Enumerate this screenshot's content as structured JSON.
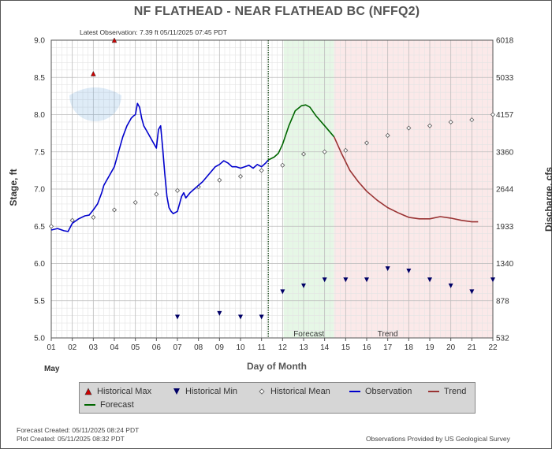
{
  "header": {
    "title": "NF FLATHEAD - NEAR FLATHEAD BC  (NFFQ2)",
    "latest_observation": "Latest Observation: 7.39 ft 05/11/2025 07:45 PDT"
  },
  "chart_data": {
    "type": "line",
    "xlabel": "Day of Month",
    "month_label": "May",
    "ylabel_left": "Stage, ft",
    "ylabel_right": "Discharge, cfs",
    "xlim": [
      1,
      22
    ],
    "ylim": [
      5.0,
      9.0
    ],
    "x_ticks": [
      "01",
      "02",
      "03",
      "04",
      "05",
      "06",
      "07",
      "08",
      "09",
      "10",
      "11",
      "12",
      "13",
      "14",
      "15",
      "16",
      "17",
      "18",
      "19",
      "20",
      "21",
      "22"
    ],
    "y_ticks_left": [
      "5.0",
      "5.5",
      "6.0",
      "6.5",
      "7.0",
      "7.5",
      "8.0",
      "8.5",
      "9.0"
    ],
    "y_ticks_right": [
      "532",
      "878",
      "1340",
      "1933",
      "2644",
      "3360",
      "4157",
      "5033",
      "6018"
    ],
    "grid": true,
    "regions": {
      "forecast_label": "Forecast",
      "trend_label": "Trend",
      "forecast_start": 12.05,
      "forecast_end": 14.45,
      "trend_end": 22,
      "current_time": 11.32
    },
    "colors": {
      "observation": "#0000cc",
      "forecast": "#006600",
      "trend": "#993333",
      "forecast_bg": "#e6f7e6",
      "trend_bg": "#fbe9e9",
      "hist_max": "#cc0000",
      "hist_min": "#000066",
      "mean": "#555555"
    },
    "series": [
      {
        "name": "Observation",
        "x": [
          1.0,
          1.3,
          1.6,
          1.8,
          2.0,
          2.3,
          2.6,
          2.8,
          3.0,
          3.2,
          3.4,
          3.5,
          3.6,
          3.8,
          4.0,
          4.2,
          4.4,
          4.6,
          4.7,
          4.8,
          4.9,
          5.0,
          5.1,
          5.2,
          5.3,
          5.4,
          5.5,
          5.6,
          5.8,
          6.0,
          6.1,
          6.2,
          6.3,
          6.4,
          6.5,
          6.6,
          6.7,
          6.8,
          7.0,
          7.2,
          7.3,
          7.4,
          7.6,
          7.8,
          8.0,
          8.2,
          8.5,
          8.8,
          9.0,
          9.2,
          9.4,
          9.6,
          9.8,
          10.0,
          10.2,
          10.4,
          10.6,
          10.8,
          11.0,
          11.2,
          11.32
        ],
        "y": [
          6.45,
          6.47,
          6.44,
          6.43,
          6.54,
          6.6,
          6.64,
          6.65,
          6.72,
          6.8,
          6.95,
          7.05,
          7.1,
          7.2,
          7.3,
          7.5,
          7.7,
          7.85,
          7.9,
          7.95,
          7.98,
          8.0,
          8.15,
          8.1,
          7.95,
          7.85,
          7.8,
          7.75,
          7.65,
          7.55,
          7.8,
          7.85,
          7.55,
          7.2,
          6.9,
          6.75,
          6.7,
          6.67,
          6.7,
          6.9,
          6.95,
          6.88,
          6.95,
          7.0,
          7.05,
          7.1,
          7.2,
          7.3,
          7.33,
          7.38,
          7.35,
          7.3,
          7.3,
          7.28,
          7.3,
          7.32,
          7.28,
          7.33,
          7.3,
          7.35,
          7.39
        ]
      },
      {
        "name": "Forecast",
        "x": [
          11.32,
          11.6,
          11.8,
          12.0,
          12.3,
          12.6,
          12.9,
          13.1,
          13.3,
          13.6,
          14.0,
          14.45
        ],
        "y": [
          7.39,
          7.43,
          7.48,
          7.6,
          7.85,
          8.05,
          8.12,
          8.13,
          8.1,
          7.98,
          7.85,
          7.7
        ]
      },
      {
        "name": "Trend",
        "x": [
          14.45,
          14.8,
          15.2,
          15.6,
          16.0,
          16.5,
          17.0,
          17.5,
          18.0,
          18.5,
          19.0,
          19.5,
          20.0,
          20.5,
          21.0,
          21.3
        ],
        "y": [
          7.7,
          7.48,
          7.25,
          7.1,
          6.97,
          6.85,
          6.75,
          6.68,
          6.62,
          6.6,
          6.6,
          6.63,
          6.61,
          6.58,
          6.56,
          6.56
        ]
      }
    ],
    "historical_max": {
      "name": "Historical Max",
      "x": [
        3,
        4
      ],
      "y": [
        8.55,
        9.0
      ]
    },
    "historical_min": {
      "name": "Historical Min",
      "x": [
        7,
        9,
        10,
        11,
        12,
        13,
        14,
        15,
        16,
        17,
        18,
        19,
        20,
        21,
        22
      ],
      "y": [
        5.28,
        5.33,
        5.28,
        5.28,
        5.62,
        5.7,
        5.78,
        5.78,
        5.78,
        5.93,
        5.9,
        5.78,
        5.7,
        5.62,
        5.78
      ]
    },
    "historical_mean": {
      "name": "Historical Mean",
      "x": [
        1,
        2,
        3,
        4,
        5,
        6,
        7,
        8,
        9,
        10,
        11,
        12,
        13,
        14,
        15,
        16,
        17,
        18,
        19,
        20,
        21,
        22
      ],
      "y": [
        6.5,
        6.58,
        6.62,
        6.72,
        6.82,
        6.93,
        6.98,
        7.03,
        7.12,
        7.17,
        7.25,
        7.32,
        7.47,
        7.5,
        7.52,
        7.62,
        7.72,
        7.82,
        7.85,
        7.9,
        7.93,
        8.0
      ]
    },
    "legend": [
      "Historical Max",
      "Historical Min",
      "Historical Mean",
      "Observation",
      "Trend",
      "Forecast"
    ]
  },
  "footer": {
    "forecast_created": "Forecast Created: 05/11/2025 08:24 PDT",
    "plot_created": "Plot Created: 05/11/2025 08:32 PDT",
    "provider": "Observations Provided by US Geological Survey"
  }
}
